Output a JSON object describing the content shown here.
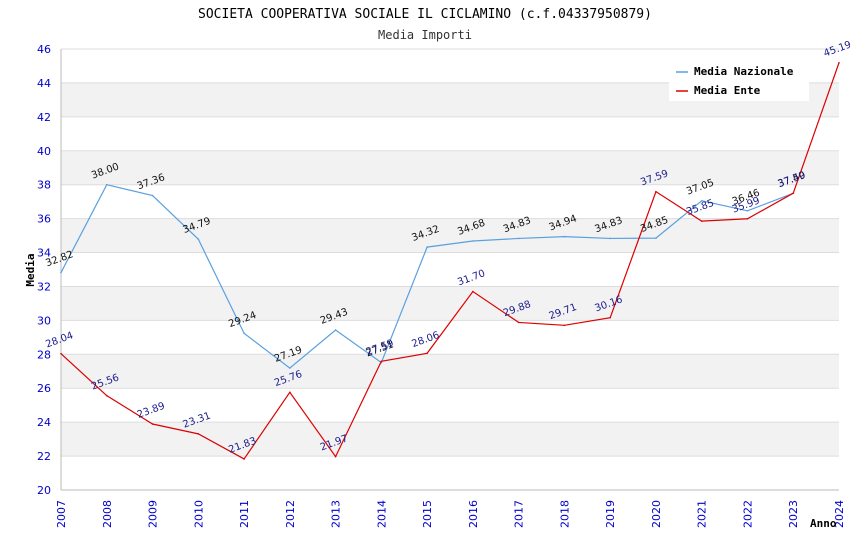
{
  "chart_data": {
    "type": "line",
    "title": "SOCIETA COOPERATIVA SOCIALE IL CICLAMINO (c.f.04337950879)",
    "subtitle": "Media Importi",
    "xlabel": "Anno",
    "ylabel": "Media",
    "ylim": [
      20,
      46
    ],
    "yticks": [
      20,
      22,
      24,
      26,
      28,
      30,
      32,
      34,
      36,
      38,
      40,
      42,
      44,
      46
    ],
    "categories": [
      "2007",
      "2008",
      "2009",
      "2010",
      "2011",
      "2012",
      "2013",
      "2014",
      "2015",
      "2016",
      "2017",
      "2018",
      "2019",
      "2020",
      "2021",
      "2022",
      "2023",
      "2024"
    ],
    "grid": "horizontal bands",
    "legend_position": "top-right",
    "series": [
      {
        "name": "Media Nazionale",
        "color": "#5aa0e0",
        "values": [
          32.82,
          38.0,
          37.36,
          34.79,
          29.24,
          27.19,
          29.43,
          27.51,
          34.32,
          34.68,
          34.83,
          34.94,
          34.83,
          34.85,
          37.05,
          36.46,
          37.49,
          null
        ],
        "labels": [
          "32.82",
          "38.00",
          "37.36",
          "34.79",
          "29.24",
          "27.19",
          "29.43",
          "27.51",
          "34.32",
          "34.68",
          "34.83",
          "34.94",
          "34.83",
          "34.85",
          "37.05",
          "36.46",
          "37.49",
          ""
        ]
      },
      {
        "name": "Media Ente",
        "color": "#dd0000",
        "values": [
          28.04,
          25.56,
          23.89,
          23.31,
          21.83,
          25.76,
          21.97,
          27.59,
          28.06,
          31.7,
          29.88,
          29.71,
          30.16,
          37.59,
          35.85,
          35.99,
          37.5,
          45.19
        ],
        "labels": [
          "28.04",
          "25.56",
          "23.89",
          "23.31",
          "21.83",
          "25.76",
          "21.97",
          "27.59",
          "28.06",
          "31.70",
          "29.88",
          "29.71",
          "30.16",
          "37.59",
          "35.85",
          "35.99",
          "37.50",
          "45.19"
        ]
      }
    ]
  }
}
